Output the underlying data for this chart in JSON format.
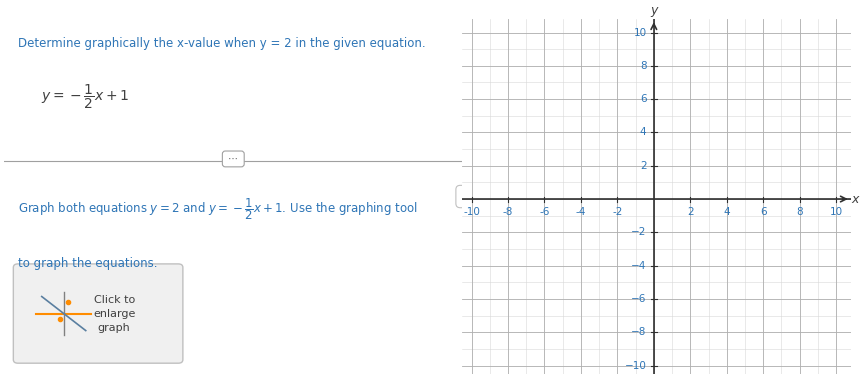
{
  "title_text": "Determine graphically the x-value when y = 2 in the given equation.",
  "equation_display": "y = − ½ x + 1",
  "instruction_text_1": "Graph both equations y = 2 and y = −",
  "instruction_text_2": "x + 1. Use the graphing tool",
  "instruction_text_3": "to graph the equations.",
  "click_text": [
    "Click to",
    "enlarge",
    "graph"
  ],
  "title_color": "#2e75b6",
  "body_color": "#404040",
  "equation_color": "#404040",
  "axis_color": "#404040",
  "tick_color": "#2e75b6",
  "grid_color_major": "#b0b0b0",
  "grid_color_minor": "#d8d8d8",
  "xlim": [
    -10,
    10
  ],
  "ylim": [
    -10,
    10
  ],
  "xticks": [
    -10,
    -8,
    -6,
    -4,
    -2,
    2,
    4,
    6,
    8,
    10
  ],
  "yticks": [
    -10,
    -8,
    -6,
    -4,
    -2,
    2,
    4,
    6,
    8,
    10
  ],
  "fig_width": 8.63,
  "fig_height": 3.78,
  "background_color": "#ffffff",
  "separator_color": "#a0a0a0",
  "divider_color": "#c0c0c0"
}
